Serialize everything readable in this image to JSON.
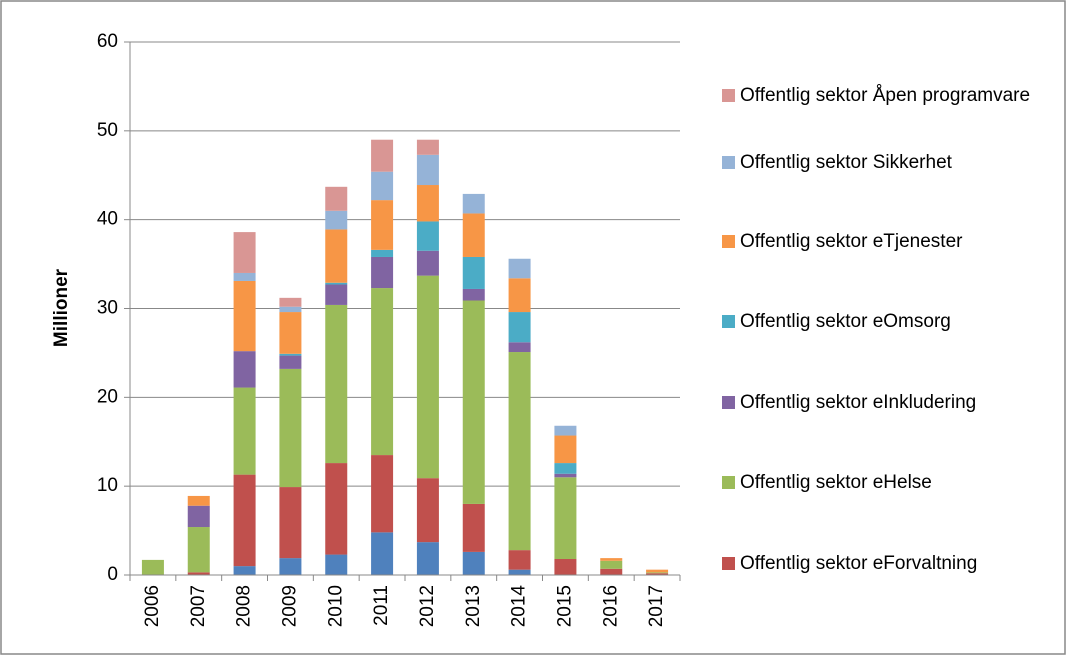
{
  "chart_data": {
    "type": "stacked_bar",
    "y_label": "Millioner",
    "categories": [
      "2006",
      "2007",
      "2008",
      "2009",
      "2010",
      "2011",
      "2012",
      "2013",
      "2014",
      "2015",
      "2016",
      "2017"
    ],
    "series": [
      {
        "color": "#4f81bd",
        "values": [
          0,
          0,
          1.0,
          1.9,
          2.3,
          4.8,
          3.7,
          2.6,
          0.6,
          0,
          0,
          0
        ]
      },
      {
        "name": "Offentlig sektor eForvaltning",
        "color": "#c0504d",
        "values": [
          0,
          0.3,
          10.3,
          8.0,
          10.3,
          8.7,
          7.2,
          5.4,
          2.2,
          1.8,
          0.7,
          0.2
        ]
      },
      {
        "name": "Offentlig sektor eHelse",
        "color": "#9bbb59",
        "values": [
          1.7,
          5.1,
          9.8,
          13.3,
          17.8,
          18.8,
          22.8,
          22.9,
          22.3,
          9.2,
          0.9,
          0.1
        ]
      },
      {
        "name": "Offentlig sektor eInkludering",
        "color": "#8064a2",
        "values": [
          0,
          2.4,
          4.1,
          1.5,
          2.3,
          3.5,
          2.8,
          1.3,
          1.1,
          0.4,
          0,
          0
        ]
      },
      {
        "name": "Offentlig sektor eOmsorg",
        "color": "#4bacc6",
        "values": [
          0,
          0,
          0,
          0.2,
          0.2,
          0.8,
          3.3,
          3.6,
          3.4,
          1.2,
          0,
          0
        ]
      },
      {
        "name": "Offentlig sektor eTjenester",
        "color": "#f79646",
        "values": [
          0,
          1.1,
          7.9,
          4.7,
          6.0,
          5.6,
          4.1,
          4.9,
          3.8,
          3.1,
          0.3,
          0.3
        ]
      },
      {
        "name": "Offentlig sektor Sikkerhet",
        "color": "#95b3d7",
        "values": [
          0,
          0,
          0.9,
          0.6,
          2.1,
          3.2,
          3.4,
          2.2,
          2.2,
          1.1,
          0,
          0
        ]
      },
      {
        "name": "Offentlig sektor Åpen programvare",
        "color": "#d99694",
        "values": [
          0,
          0,
          4.6,
          1.0,
          2.7,
          3.6,
          1.7,
          0,
          0,
          0,
          0,
          0
        ]
      }
    ],
    "ylim": [
      0,
      60
    ],
    "yticks": [
      0,
      10,
      20,
      30,
      40,
      50,
      60
    ],
    "grid": true,
    "legend": "right"
  }
}
